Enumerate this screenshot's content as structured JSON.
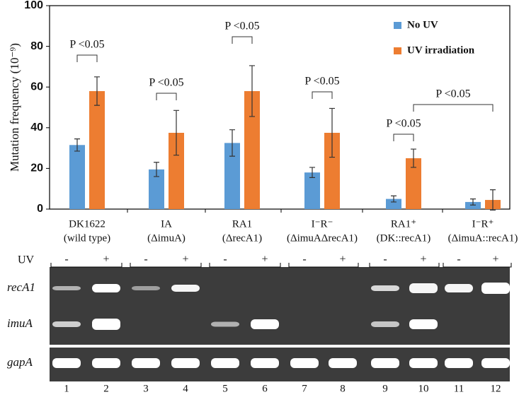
{
  "chart_data": {
    "type": "bar",
    "y_label": "Mutation frequency (10⁻⁹)",
    "categories": [
      "DK1622",
      "IA",
      "RA1",
      "I⁻R⁻",
      "RA1⁺",
      "I⁻R⁺"
    ],
    "category_sublabels": [
      "(wild type)",
      "(ΔimuA)",
      "(ΔrecA1)",
      "(ΔimuAΔrecA1)",
      "(DK::recA1)",
      "(ΔimuA::recA1)"
    ],
    "series": [
      {
        "name": "No UV",
        "color": "#5b9bd5",
        "values": [
          31.5,
          19.5,
          32.5,
          18,
          5,
          3.5
        ],
        "errors": [
          3,
          3.5,
          6.5,
          2.5,
          1.5,
          1.5
        ]
      },
      {
        "name": "UV irradiation",
        "color": "#ed7d31",
        "values": [
          58,
          37.5,
          58,
          37.5,
          25,
          4.5
        ],
        "errors": [
          7,
          11,
          12.5,
          12,
          4.5,
          5
        ]
      }
    ],
    "ylim": [
      0,
      100
    ],
    "yticks": [
      0,
      20,
      40,
      60,
      80,
      100
    ],
    "grid": false,
    "legend": "top-right",
    "annotations": [
      "P <0.05",
      "P <0.05",
      "P <0.05",
      "P <0.05",
      "P <0.05",
      "P <0.05"
    ]
  },
  "gel": {
    "uv_label": "UV",
    "treatments": [
      "-",
      "+",
      "-",
      "+",
      "-",
      "+",
      "-",
      "+",
      "-",
      "+",
      "-",
      "+"
    ],
    "rows": [
      "recA1",
      "imuA",
      "gapA"
    ],
    "lanes": [
      "1",
      "2",
      "3",
      "4",
      "5",
      "6",
      "7",
      "8",
      "9",
      "10",
      "11",
      "12"
    ]
  }
}
